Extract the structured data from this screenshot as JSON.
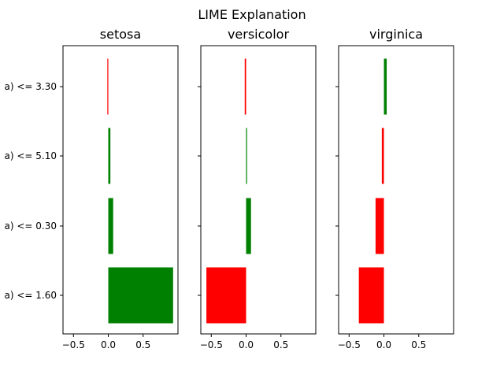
{
  "figure": {
    "title": "LIME Explanation"
  },
  "colors": {
    "positive": "#008000",
    "negative": "#ff0000",
    "axis": "#000000"
  },
  "chart_data": [
    {
      "type": "bar",
      "orientation": "horizontal",
      "title": "setosa",
      "categories": [
        "(...a) <= 3.30",
        "(...a) <= 5.10",
        "(...a) <= 0.30",
        "(...a) <= 1.60"
      ],
      "category_labels": [
        "a) <= 3.30",
        "a) <= 5.10",
        "a) <= 0.30",
        "a) <= 1.60"
      ],
      "values": [
        -0.01,
        0.03,
        0.07,
        0.93
      ],
      "xlim": [
        -0.65,
        1.0
      ],
      "xticks": [
        -0.5,
        0.0,
        0.5
      ],
      "xtick_labels": [
        "−0.5",
        "0.0",
        "0.5"
      ],
      "grid": false
    },
    {
      "type": "bar",
      "orientation": "horizontal",
      "title": "versicolor",
      "categories": [
        "(...a) <= 3.30",
        "(...a) <= 5.10",
        "(...a) <= 0.30",
        "(...a) <= 1.60"
      ],
      "values": [
        -0.02,
        0.0,
        0.07,
        -0.57
      ],
      "xlim": [
        -0.65,
        1.0
      ],
      "xticks": [
        -0.5,
        0.0,
        0.5
      ],
      "xtick_labels": [
        "−0.5",
        "0.0",
        "0.5"
      ],
      "grid": false
    },
    {
      "type": "bar",
      "orientation": "horizontal",
      "title": "virginica",
      "categories": [
        "(...a) <= 3.30",
        "(...a) <= 5.10",
        "(...a) <= 0.30",
        "(...a) <= 1.60"
      ],
      "values": [
        0.04,
        -0.03,
        -0.12,
        -0.36
      ],
      "xlim": [
        -0.65,
        1.0
      ],
      "xticks": [
        -0.5,
        0.0,
        0.5
      ],
      "xtick_labels": [
        "−0.5",
        "0.0",
        "0.5"
      ],
      "grid": false
    }
  ]
}
